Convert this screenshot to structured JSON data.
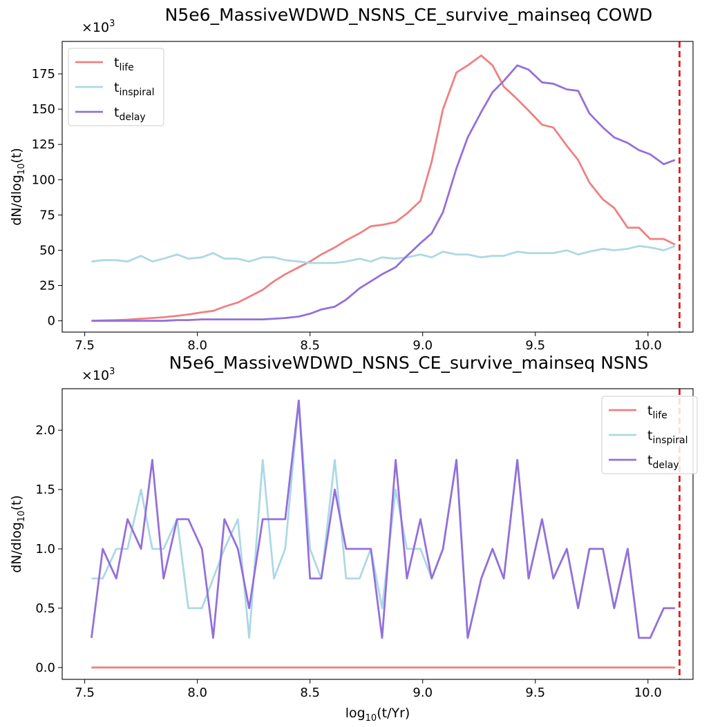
{
  "chart_data": [
    {
      "type": "line",
      "title": "N5e6_MassiveWDWD_NSNS_CE_survive_mainseq COWD",
      "xlabel": "",
      "ylabel": "dN/dlog10(t)",
      "y_multiplier": "×10^3",
      "xlim": [
        7.4,
        10.2
      ],
      "ylim": [
        -8,
        198
      ],
      "xticks": [
        7.5,
        8.0,
        8.5,
        9.0,
        9.5,
        10.0
      ],
      "xtick_labels": [
        "7.5",
        "8.0",
        "8.5",
        "9.0",
        "9.5",
        "10.0"
      ],
      "yticks": [
        0,
        25,
        50,
        75,
        100,
        125,
        150,
        175
      ],
      "ytick_labels": [
        "0",
        "25",
        "50",
        "75",
        "100",
        "125",
        "150",
        "175"
      ],
      "vline": {
        "x": 10.14,
        "color": "#e41a1c",
        "style": "dashed"
      },
      "legend": {
        "position": "top-left"
      },
      "x": [
        7.53,
        7.58,
        7.64,
        7.69,
        7.75,
        7.8,
        7.85,
        7.91,
        7.96,
        8.02,
        8.07,
        8.12,
        8.18,
        8.23,
        8.29,
        8.34,
        8.39,
        8.45,
        8.5,
        8.55,
        8.61,
        8.66,
        8.72,
        8.77,
        8.82,
        8.88,
        8.93,
        8.99,
        9.04,
        9.09,
        9.15,
        9.2,
        9.26,
        9.31,
        9.36,
        9.42,
        9.47,
        9.53,
        9.58,
        9.64,
        9.69,
        9.74,
        9.8,
        9.85,
        9.91,
        9.96,
        10.01,
        10.07,
        10.12
      ],
      "series": [
        {
          "name": "t",
          "subscript": "life",
          "color": "#f08080",
          "values": [
            0,
            0.2,
            0.5,
            0.8,
            1.5,
            2,
            2.5,
            3.5,
            4.5,
            6,
            7,
            10,
            13,
            17,
            22,
            28,
            33,
            38,
            42,
            47,
            52,
            57,
            62,
            67,
            68,
            70,
            76,
            85,
            113,
            150,
            176,
            181,
            188,
            181,
            166,
            157,
            149,
            139,
            137,
            124,
            114,
            98,
            86,
            80,
            66,
            66,
            58,
            58,
            54
          ]
        },
        {
          "name": "t",
          "subscript": "inspiral",
          "color": "#add8e6",
          "values": [
            42,
            43,
            43,
            42,
            46,
            42,
            44,
            47,
            44,
            45,
            48,
            44,
            44,
            42,
            45,
            45,
            43,
            42,
            41,
            41,
            41,
            42,
            44,
            42,
            45,
            44,
            45,
            47,
            45,
            49,
            47,
            47,
            45,
            46,
            46,
            49,
            48,
            48,
            48,
            50,
            47,
            49,
            51,
            50,
            51,
            53,
            52,
            50,
            53
          ]
        },
        {
          "name": "t",
          "subscript": "delay",
          "color": "#9370db",
          "values": [
            0,
            0,
            0,
            0,
            0,
            0,
            0,
            0.5,
            0.5,
            1,
            1,
            1,
            1,
            1,
            1,
            1.5,
            2,
            3,
            5,
            8,
            10,
            15,
            23,
            28,
            33,
            38,
            46,
            55,
            62,
            77,
            108,
            130,
            148,
            162,
            170,
            181,
            178,
            169,
            168,
            164,
            163,
            147,
            137,
            130,
            126,
            121,
            118,
            111,
            114
          ]
        }
      ]
    },
    {
      "type": "line",
      "title": "N5e6_MassiveWDWD_NSNS_CE_survive_mainseq NSNS",
      "xlabel": "log10(t/Yr)",
      "ylabel": "dN/dlog10(t)",
      "y_multiplier": "×10^3",
      "xlim": [
        7.4,
        10.2
      ],
      "ylim": [
        -0.1,
        2.35
      ],
      "xticks": [
        7.5,
        8.0,
        8.5,
        9.0,
        9.5,
        10.0
      ],
      "xtick_labels": [
        "7.5",
        "8.0",
        "8.5",
        "9.0",
        "9.5",
        "10.0"
      ],
      "yticks": [
        0.0,
        0.5,
        1.0,
        1.5,
        2.0
      ],
      "ytick_labels": [
        "0.0",
        "0.5",
        "1.0",
        "1.5",
        "2.0"
      ],
      "vline": {
        "x": 10.14,
        "color": "#e41a1c",
        "style": "dashed"
      },
      "legend": {
        "position": "top-right"
      },
      "x": [
        7.53,
        7.58,
        7.64,
        7.69,
        7.75,
        7.8,
        7.85,
        7.91,
        7.96,
        8.02,
        8.07,
        8.12,
        8.18,
        8.23,
        8.29,
        8.34,
        8.39,
        8.45,
        8.5,
        8.55,
        8.61,
        8.66,
        8.72,
        8.77,
        8.82,
        8.88,
        8.93,
        8.99,
        9.04,
        9.09,
        9.15,
        9.2,
        9.26,
        9.31,
        9.36,
        9.42,
        9.47,
        9.53,
        9.58,
        9.64,
        9.69,
        9.74,
        9.8,
        9.85,
        9.91,
        9.96,
        10.01,
        10.07,
        10.12
      ],
      "series": [
        {
          "name": "t",
          "subscript": "life",
          "color": "#f08080",
          "values": [
            0,
            0,
            0,
            0,
            0,
            0,
            0,
            0,
            0,
            0,
            0,
            0,
            0,
            0,
            0,
            0,
            0,
            0,
            0,
            0,
            0,
            0,
            0,
            0,
            0,
            0,
            0,
            0,
            0,
            0,
            0,
            0,
            0,
            0,
            0,
            0,
            0,
            0,
            0,
            0,
            0,
            0,
            0,
            0,
            0,
            0,
            0,
            0,
            0
          ]
        },
        {
          "name": "t",
          "subscript": "inspiral",
          "color": "#add8e6",
          "values": [
            0.75,
            0.75,
            1.0,
            1.0,
            1.5,
            1.0,
            1.0,
            1.25,
            0.5,
            0.5,
            0.75,
            1.0,
            1.25,
            0.25,
            1.75,
            0.75,
            1.0,
            2.25,
            1.0,
            0.75,
            1.75,
            0.75,
            0.75,
            1.0,
            0.5,
            1.5,
            1.0,
            1.0,
            0.75,
            1.0,
            1.75,
            0.25,
            0.75,
            1.0,
            0.75,
            1.75,
            0.75,
            1.25,
            0.75,
            1.0,
            0.5,
            1.0,
            1.0,
            0.5,
            1.0,
            0.25,
            0.25,
            0.5,
            0.5
          ]
        },
        {
          "name": "t",
          "subscript": "delay",
          "color": "#9370db",
          "values": [
            0.25,
            1.0,
            0.75,
            1.25,
            1.0,
            1.75,
            0.75,
            1.25,
            1.25,
            1.0,
            0.25,
            1.25,
            1.0,
            0.5,
            1.25,
            1.25,
            1.25,
            2.25,
            0.75,
            0.75,
            1.5,
            1.0,
            1.0,
            1.0,
            0.25,
            1.75,
            0.75,
            1.25,
            0.75,
            1.0,
            1.75,
            0.25,
            0.75,
            1.0,
            0.75,
            1.75,
            0.75,
            1.25,
            0.75,
            1.0,
            0.5,
            1.0,
            1.0,
            0.5,
            1.0,
            0.25,
            0.25,
            0.5,
            0.5
          ]
        }
      ]
    }
  ]
}
